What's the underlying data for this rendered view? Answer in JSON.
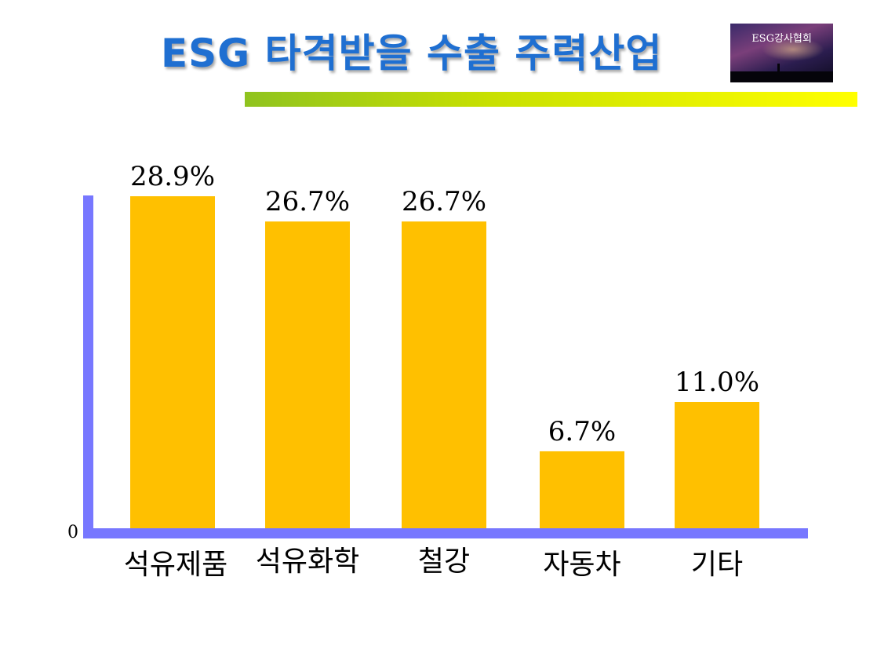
{
  "title": "ESG 타격받을 수출 주력산업",
  "logo": {
    "text": "ESG강사협회"
  },
  "colors": {
    "title": "#1f6fd1",
    "bar": "#ffc000",
    "axis": "#7777ff"
  },
  "chart_data": {
    "type": "bar",
    "categories": [
      "석유제품",
      "석유화학",
      "철강",
      "자동차",
      "기타"
    ],
    "values": [
      28.9,
      26.7,
      26.7,
      6.7,
      11.0
    ],
    "value_labels": [
      "28.9%",
      "26.7%",
      "26.7%",
      "6.7%",
      "11.0%"
    ],
    "ylim": [
      0,
      28.9
    ],
    "y_tick_labels": [
      "0"
    ],
    "grid": false,
    "legend": "none"
  }
}
